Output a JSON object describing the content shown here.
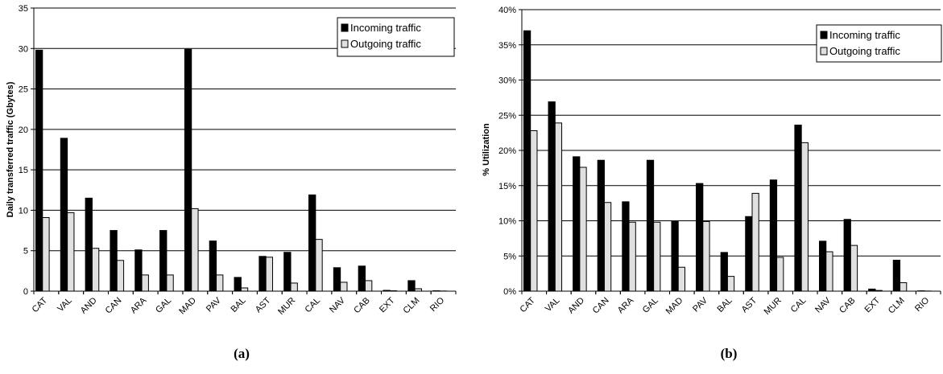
{
  "chart_data": [
    {
      "type": "bar",
      "panel_label": "(a)",
      "title": "",
      "xlabel": "",
      "ylabel": "Daily transferred traffic (Gbytes)",
      "ylim": [
        0,
        35
      ],
      "yticks": [
        0,
        5,
        10,
        15,
        20,
        25,
        30,
        35
      ],
      "ytick_labels": [
        "0",
        "5",
        "10",
        "15",
        "20",
        "25",
        "30",
        "35"
      ],
      "grid": true,
      "legend_position": "top-right",
      "categories": [
        "CAT",
        "VAL",
        "AND",
        "CAN",
        "ARA",
        "GAL",
        "MAD",
        "PAV",
        "BAL",
        "AST",
        "MUR",
        "CAL",
        "NAV",
        "CAB",
        "EXT",
        "CLM",
        "RIO"
      ],
      "series": [
        {
          "name": "Incoming traffic",
          "color": "#000000",
          "values": [
            29.8,
            18.9,
            11.5,
            7.5,
            5.1,
            7.5,
            29.9,
            6.2,
            1.7,
            4.3,
            4.8,
            11.9,
            2.9,
            3.1,
            0.1,
            1.3,
            0.05
          ]
        },
        {
          "name": "Outgoing traffic",
          "color": "#e0e0e0",
          "values": [
            9.1,
            9.7,
            5.3,
            3.8,
            2.0,
            2.0,
            10.2,
            2.0,
            0.4,
            4.2,
            1.0,
            6.4,
            1.1,
            1.3,
            0.05,
            0.3,
            0.02
          ]
        }
      ]
    },
    {
      "type": "bar",
      "panel_label": "(b)",
      "title": "",
      "xlabel": "",
      "ylabel": "% Utilization",
      "ylim": [
        0,
        40
      ],
      "yticks": [
        0,
        5,
        10,
        15,
        20,
        25,
        30,
        35,
        40
      ],
      "ytick_labels": [
        "0%",
        "5%",
        "10%",
        "15%",
        "20%",
        "25%",
        "30%",
        "35%",
        "40%"
      ],
      "grid": true,
      "legend_position": "top-right",
      "categories": [
        "CAT",
        "VAL",
        "AND",
        "CAN",
        "ARA",
        "GAL",
        "MAD",
        "PAV",
        "BAL",
        "AST",
        "MUR",
        "CAL",
        "NAV",
        "CAB",
        "EXT",
        "CLM",
        "RIO"
      ],
      "series": [
        {
          "name": "Incoming traffic",
          "color": "#000000",
          "values": [
            37.0,
            26.9,
            19.1,
            18.6,
            12.7,
            18.6,
            10.0,
            15.3,
            5.5,
            10.6,
            15.8,
            23.6,
            7.1,
            10.2,
            0.3,
            4.4,
            0.05
          ]
        },
        {
          "name": "Outgoing traffic",
          "color": "#e0e0e0",
          "values": [
            22.8,
            23.9,
            17.6,
            12.6,
            9.8,
            9.8,
            3.4,
            9.9,
            2.1,
            13.9,
            4.8,
            21.1,
            5.6,
            6.5,
            0.1,
            1.2,
            0.02
          ]
        }
      ]
    }
  ]
}
